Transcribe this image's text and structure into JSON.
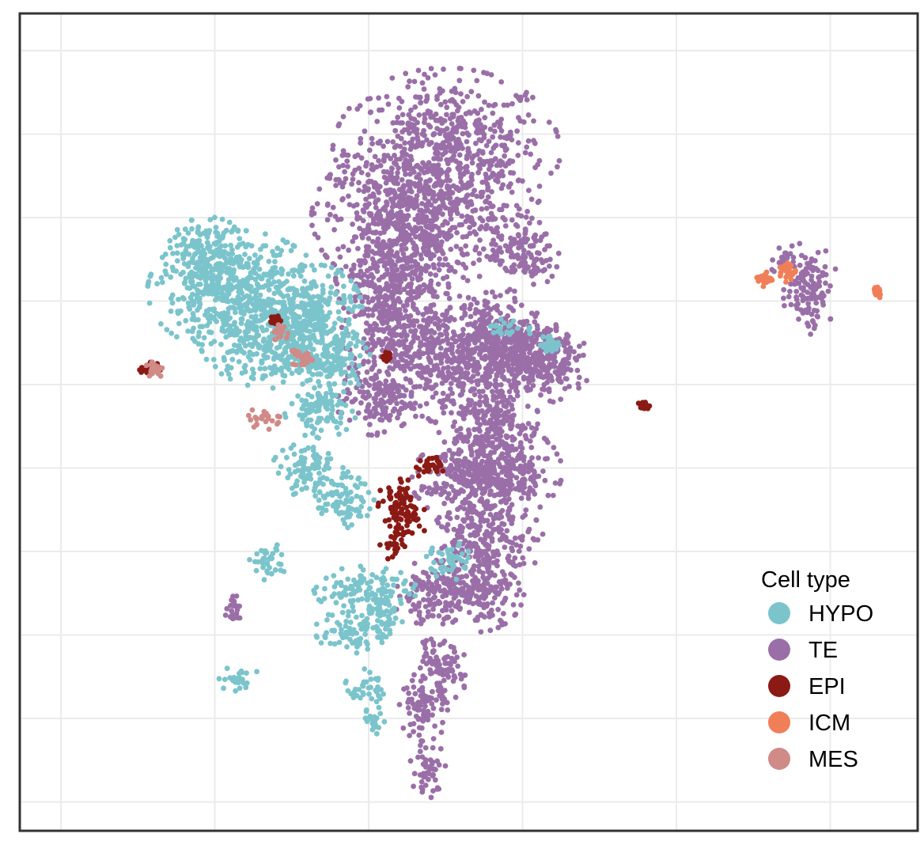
{
  "chart_data": {
    "type": "scatter",
    "title": "",
    "xlabel": "",
    "ylabel": "",
    "axis_tick_labels_shown": false,
    "grid": true,
    "legend": {
      "title": "Cell type",
      "position": "bottom-right",
      "entries": [
        {
          "label": "HYPO",
          "color": "#7BC4CC"
        },
        {
          "label": "TE",
          "color": "#9A6FA8"
        },
        {
          "label": "EPI",
          "color": "#8B1A14"
        },
        {
          "label": "ICM",
          "color": "#F07F58"
        },
        {
          "label": "MES",
          "color": "#D08A87"
        }
      ]
    },
    "xlim": [
      0,
      100
    ],
    "ylim": [
      0,
      100
    ],
    "clusters": [
      {
        "type": "TE",
        "color": "#9A6FA8",
        "points": [
          [
            47.5,
            83.0
          ],
          [
            44.0,
            75.0
          ],
          [
            41.5,
            67.5
          ],
          [
            47.5,
            58.0
          ],
          [
            41.0,
            61.0
          ],
          [
            39.5,
            53.0
          ],
          [
            56.0,
            70.5
          ],
          [
            53.0,
            61.0
          ],
          [
            55.5,
            59.0
          ],
          [
            56.0,
            56.5
          ],
          [
            52.0,
            50.5
          ],
          [
            53.5,
            44.0
          ],
          [
            50.5,
            43.0
          ],
          [
            52.0,
            35.5
          ],
          [
            51.0,
            29.5
          ],
          [
            45.5,
            29.0
          ],
          [
            46.5,
            19.5
          ],
          [
            45.0,
            15.0
          ],
          [
            45.5,
            7.5
          ],
          [
            88.0,
            66.5
          ],
          [
            85.0,
            70.0
          ],
          [
            24.0,
            27.0
          ],
          [
            60.0,
            57.0
          ]
        ],
        "extents": [
          [
            11.0,
            9.0
          ],
          [
            10.0,
            8.0
          ],
          [
            5.5,
            6.0
          ],
          [
            7.0,
            7.0
          ],
          [
            4.5,
            4.0
          ],
          [
            4.0,
            4.0
          ],
          [
            3.5,
            4.0
          ],
          [
            4.0,
            4.5
          ],
          [
            5.0,
            4.5
          ],
          [
            4.0,
            4.0
          ],
          [
            5.0,
            4.0
          ],
          [
            6.0,
            5.0
          ],
          [
            6.0,
            4.5
          ],
          [
            5.5,
            4.5
          ],
          [
            4.5,
            4.5
          ],
          [
            3.5,
            3.5
          ],
          [
            3.0,
            3.5
          ],
          [
            2.5,
            3.5
          ],
          [
            1.8,
            3.0
          ],
          [
            2.7,
            5.0
          ],
          [
            1.5,
            1.8
          ],
          [
            1.0,
            1.5
          ],
          [
            3.0,
            4.0
          ]
        ]
      },
      {
        "type": "HYPO",
        "color": "#7BC4CC",
        "points": [
          [
            24.0,
            66.0
          ],
          [
            21.0,
            70.5
          ],
          [
            28.0,
            60.5
          ],
          [
            33.0,
            63.5
          ],
          [
            34.5,
            57.5
          ],
          [
            33.5,
            51.5
          ],
          [
            32.0,
            44.0
          ],
          [
            36.0,
            40.5
          ],
          [
            38.5,
            29.5
          ],
          [
            37.5,
            24.5
          ],
          [
            38.5,
            17.5
          ],
          [
            39.5,
            13.5
          ],
          [
            54.5,
            61.5
          ],
          [
            59.0,
            59.5
          ],
          [
            24.5,
            18.5
          ],
          [
            27.5,
            33.0
          ],
          [
            48.0,
            33.0
          ],
          [
            40.5,
            26.5
          ]
        ],
        "extents": [
          [
            8.5,
            6.5
          ],
          [
            4.0,
            4.0
          ],
          [
            7.0,
            5.5
          ],
          [
            4.5,
            5.0
          ],
          [
            4.0,
            3.5
          ],
          [
            3.5,
            3.0
          ],
          [
            3.5,
            3.0
          ],
          [
            3.0,
            3.0
          ],
          [
            5.0,
            2.5
          ],
          [
            4.0,
            2.5
          ],
          [
            2.0,
            2.0
          ],
          [
            1.2,
            1.5
          ],
          [
            2.5,
            1.0
          ],
          [
            1.5,
            1.0
          ],
          [
            2.0,
            1.5
          ],
          [
            2.0,
            2.0
          ],
          [
            2.5,
            2.0
          ],
          [
            2.0,
            2.0
          ]
        ]
      },
      {
        "type": "EPI",
        "color": "#8B1A14",
        "points": [
          [
            42.0,
            40.5
          ],
          [
            43.0,
            38.0
          ],
          [
            41.5,
            35.0
          ],
          [
            45.5,
            44.5
          ],
          [
            14.5,
            56.5
          ],
          [
            69.5,
            52.0
          ],
          [
            41.0,
            58.0
          ],
          [
            28.5,
            62.5
          ]
        ],
        "extents": [
          [
            2.0,
            2.5
          ],
          [
            2.0,
            2.5
          ],
          [
            1.2,
            2.0
          ],
          [
            1.5,
            1.2
          ],
          [
            1.0,
            0.8
          ],
          [
            0.6,
            0.5
          ],
          [
            0.5,
            0.5
          ],
          [
            0.5,
            0.5
          ]
        ]
      },
      {
        "type": "ICM",
        "color": "#F07F58",
        "points": [
          [
            85.5,
            68.5
          ],
          [
            83.0,
            67.5
          ],
          [
            95.5,
            66.0
          ]
        ],
        "extents": [
          [
            1.0,
            1.2
          ],
          [
            0.8,
            0.8
          ],
          [
            0.5,
            0.8
          ]
        ]
      },
      {
        "type": "MES",
        "color": "#D08A87",
        "points": [
          [
            15.0,
            56.5
          ],
          [
            27.5,
            50.5
          ],
          [
            29.0,
            61.0
          ],
          [
            31.5,
            58.0
          ]
        ],
        "extents": [
          [
            1.0,
            1.0
          ],
          [
            2.0,
            1.2
          ],
          [
            0.8,
            1.0
          ],
          [
            1.2,
            1.2
          ]
        ]
      }
    ]
  }
}
